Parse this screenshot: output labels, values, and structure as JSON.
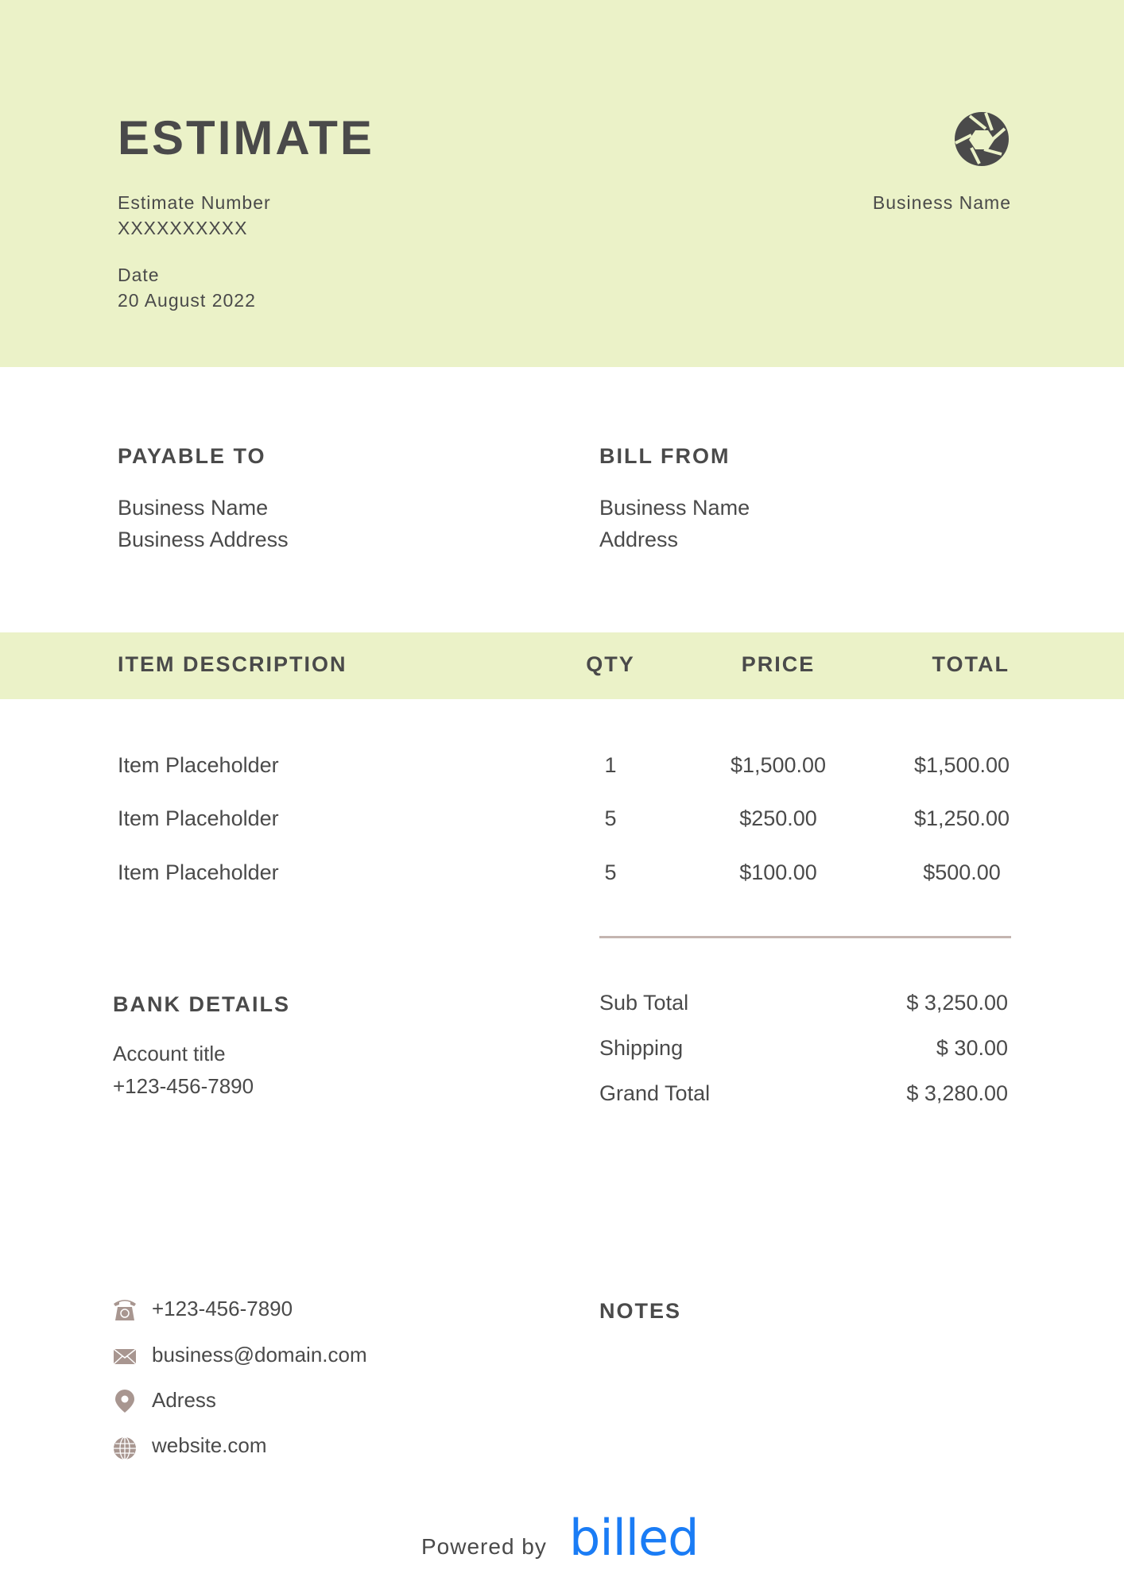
{
  "header": {
    "title": "ESTIMATE",
    "estimate_number_label": "Estimate Number",
    "estimate_number": "XXXXXXXXXX",
    "date_label": "Date",
    "date": "20 August 2022",
    "business_name": "Business Name",
    "logo_icon": "camera-aperture-icon",
    "background_color": "#ebf2c8"
  },
  "payable_to": {
    "heading": "PAYABLE TO",
    "name": "Business Name",
    "address": "Business Address"
  },
  "bill_from": {
    "heading": "BILL FROM",
    "name": "Business Name",
    "address": "Address"
  },
  "table": {
    "headers": [
      "ITEM DESCRIPTION",
      "QTY",
      "PRICE",
      "TOTAL"
    ],
    "rows": [
      {
        "description": "Item Placeholder",
        "qty": "1",
        "price": "$1,500.00",
        "total": "$1,500.00"
      },
      {
        "description": "Item Placeholder",
        "qty": "5",
        "price": "$250.00",
        "total": "$1,250.00"
      },
      {
        "description": "Item Placeholder",
        "qty": "5",
        "price": "$100.00",
        "total": "$500.00"
      }
    ]
  },
  "bank": {
    "heading": "BANK DETAILS",
    "account_title": "Account title",
    "phone": "+123-456-7890"
  },
  "totals": [
    {
      "label": "Sub Total",
      "value": "$ 3,250.00"
    },
    {
      "label": "Shipping",
      "value": "$ 30.00"
    },
    {
      "label": "Grand Total",
      "value": "$ 3,280.00"
    }
  ],
  "contact": [
    {
      "icon": "telephone-icon",
      "text": "+123-456-7890"
    },
    {
      "icon": "envelope-icon",
      "text": "business@domain.com"
    },
    {
      "icon": "location-pin-icon",
      "text": "Adress"
    },
    {
      "icon": "globe-icon",
      "text": "website.com"
    }
  ],
  "notes": {
    "heading": "NOTES"
  },
  "footer": {
    "powered_by": "Powered by",
    "brand": "billed",
    "brand_color": "#1a7cf5"
  }
}
